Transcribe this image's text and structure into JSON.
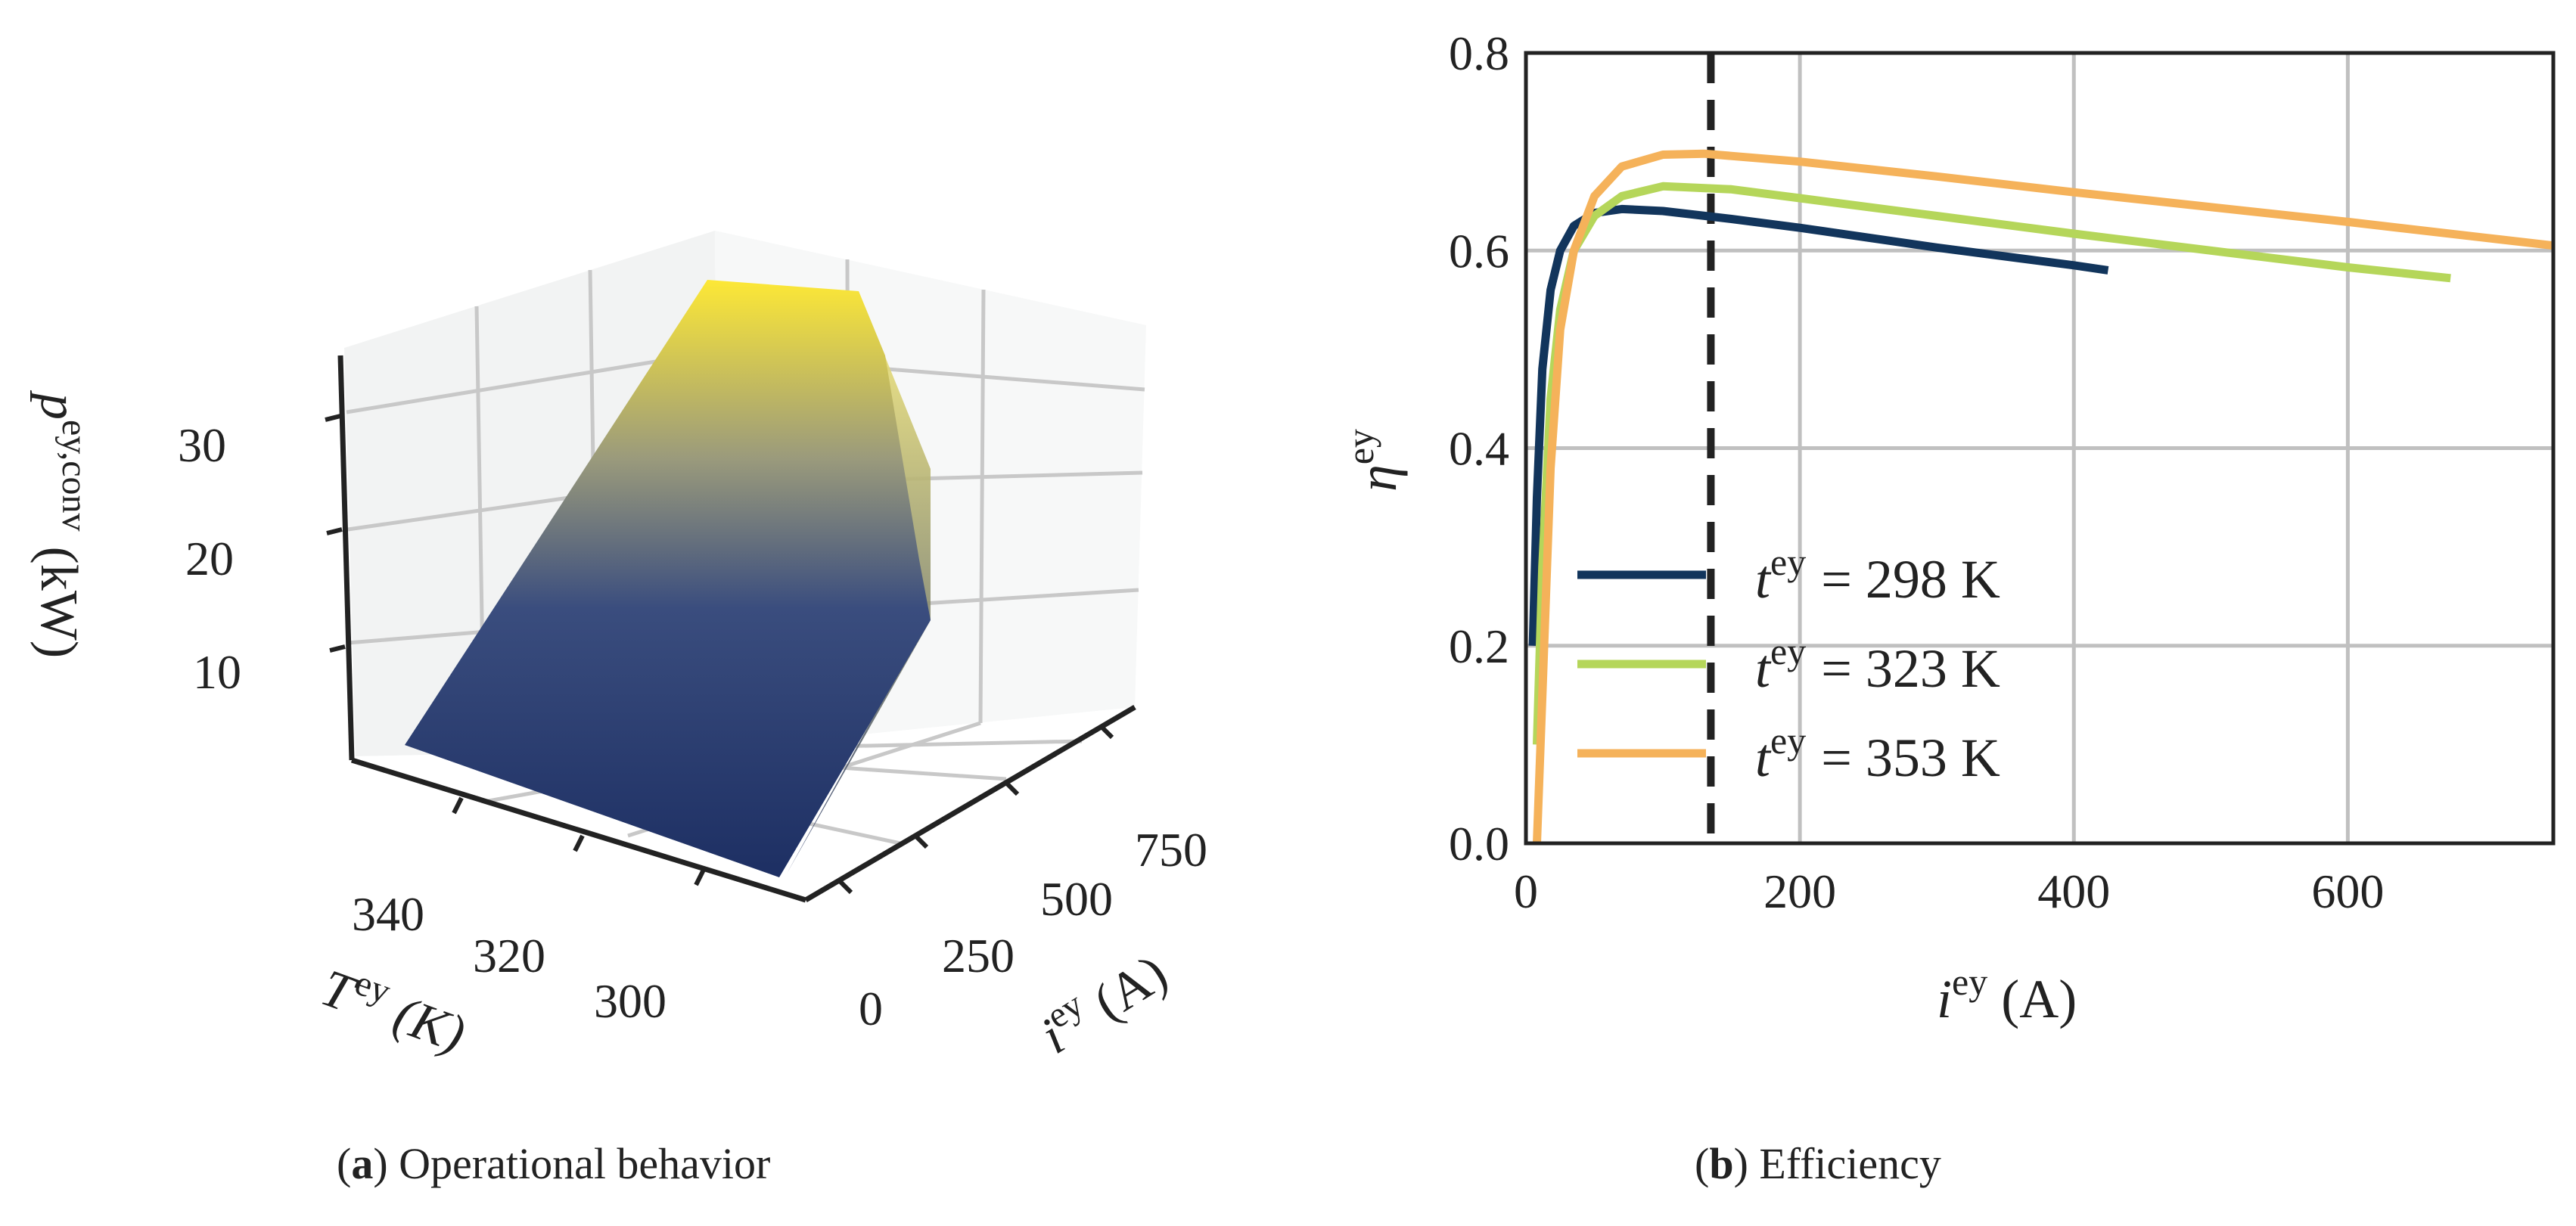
{
  "captions": {
    "a": {
      "letter": "a",
      "text": "Operational behavior"
    },
    "b": {
      "letter": "b",
      "text": "Efficiency"
    }
  },
  "colors": {
    "surface_low": "#1d2f63",
    "surface_high": "#fde836",
    "series_298": "#12355c",
    "series_323": "#b5d65a",
    "series_353": "#f5b25a",
    "grid": "#c0c0c0",
    "axis": "#222222"
  },
  "chart_data": [
    {
      "type": "surface3d",
      "panel": "a",
      "x_axis": {
        "label_main": "i",
        "label_sup": "ey",
        "label_unit": "(A)",
        "ticks": [
          "0",
          "250",
          "500",
          "750"
        ]
      },
      "y_axis": {
        "label_main": "T",
        "label_sup": "ey",
        "label_unit": "(K)",
        "ticks": [
          "340",
          "320",
          "300"
        ]
      },
      "z_axis": {
        "label_main": "p",
        "label_sup": "ey,conv",
        "label_unit": "(kW)",
        "ticks": [
          "10",
          "20",
          "30"
        ]
      },
      "x_range": [
        0,
        800
      ],
      "y_range": [
        298,
        353
      ],
      "z_range": [
        0,
        36
      ],
      "grid": true,
      "colormap": [
        "#1d2f63",
        "#fde836"
      ]
    },
    {
      "type": "line",
      "panel": "b",
      "xlabel_main": "i",
      "xlabel_sup": "ey",
      "xlabel_unit": "(A)",
      "ylabel_main": "η",
      "ylabel_sup": "ey",
      "xlim": [
        0,
        750
      ],
      "ylim": [
        0,
        0.8
      ],
      "xticks": [
        0,
        200,
        400,
        600
      ],
      "yticks": [
        0.0,
        0.2,
        0.4,
        0.6,
        0.8
      ],
      "xtick_labels": [
        "0",
        "200",
        "400",
        "600"
      ],
      "ytick_labels": [
        "0.0",
        "0.2",
        "0.4",
        "0.6",
        "0.8"
      ],
      "grid": true,
      "legend_position": "center-left",
      "vline_x": 135,
      "series": [
        {
          "name": "t^ey = 298 K",
          "legend_main": "t",
          "legend_sup": "ey",
          "legend_rest": "= 298 K",
          "color": "#12355c",
          "x": [
            5,
            8,
            12,
            18,
            25,
            35,
            50,
            70,
            100,
            150,
            200,
            300,
            400,
            425
          ],
          "y": [
            0.2,
            0.35,
            0.48,
            0.56,
            0.6,
            0.625,
            0.638,
            0.642,
            0.64,
            0.632,
            0.623,
            0.603,
            0.585,
            0.58
          ]
        },
        {
          "name": "t^ey = 323 K",
          "legend_main": "t",
          "legend_sup": "ey",
          "legend_rest": "= 323 K",
          "color": "#b5d65a",
          "x": [
            8,
            12,
            18,
            25,
            35,
            50,
            70,
            100,
            150,
            200,
            300,
            400,
            500,
            600,
            675
          ],
          "y": [
            0.1,
            0.28,
            0.45,
            0.54,
            0.6,
            0.635,
            0.655,
            0.665,
            0.662,
            0.653,
            0.635,
            0.617,
            0.6,
            0.583,
            0.572
          ]
        },
        {
          "name": "t^ey = 353 K",
          "legend_main": "t",
          "legend_sup": "ey",
          "legend_rest": "= 353 K",
          "color": "#f5b25a",
          "x": [
            8,
            12,
            18,
            25,
            35,
            50,
            70,
            100,
            130,
            200,
            300,
            400,
            500,
            600,
            700,
            750
          ],
          "y": [
            0.0,
            0.15,
            0.38,
            0.52,
            0.6,
            0.655,
            0.685,
            0.697,
            0.698,
            0.69,
            0.675,
            0.659,
            0.644,
            0.629,
            0.613,
            0.605
          ]
        }
      ]
    }
  ]
}
